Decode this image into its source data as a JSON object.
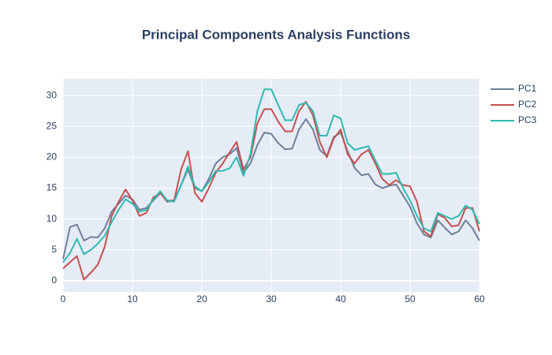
{
  "chart_data": {
    "type": "line",
    "title": "Principal Components Analysis Functions",
    "x": [
      0,
      1,
      2,
      3,
      4,
      5,
      6,
      7,
      8,
      9,
      10,
      11,
      12,
      13,
      14,
      15,
      16,
      17,
      18,
      19,
      20,
      21,
      22,
      23,
      24,
      25,
      26,
      27,
      28,
      29,
      30,
      31,
      32,
      33,
      34,
      35,
      36,
      37,
      38,
      39,
      40,
      41,
      42,
      43,
      44,
      45,
      46,
      47,
      48,
      49,
      50,
      51,
      52,
      53,
      54,
      55,
      56,
      57,
      58,
      59,
      60
    ],
    "series": [
      {
        "name": "PC1",
        "color": "#6f7f98",
        "values": [
          3.5,
          8.7,
          9.1,
          6.5,
          7.1,
          7.0,
          8.5,
          11.2,
          12.5,
          13.8,
          13.2,
          11.5,
          11.8,
          13.0,
          14.2,
          13.0,
          13.0,
          15.5,
          18.0,
          15.0,
          14.5,
          16.5,
          19.0,
          20.0,
          20.5,
          21.5,
          17.5,
          19.0,
          22.0,
          24.0,
          23.8,
          22.3,
          21.3,
          21.4,
          24.5,
          26.2,
          24.5,
          21.2,
          20.2,
          23.3,
          24.0,
          21.0,
          18.3,
          17.1,
          17.3,
          15.6,
          15.0,
          15.4,
          15.6,
          13.8,
          12.0,
          9.3,
          7.5,
          7.0,
          9.8,
          8.6,
          7.5,
          8.0,
          9.8,
          8.5,
          6.5
        ]
      },
      {
        "name": "PC2",
        "color": "#c4504e",
        "values": [
          2.0,
          3.0,
          4.0,
          0.2,
          1.3,
          2.6,
          5.5,
          10.5,
          12.8,
          14.8,
          13.0,
          10.5,
          11.0,
          13.5,
          14.2,
          12.8,
          13.0,
          18.0,
          21.0,
          14.2,
          12.8,
          15.0,
          17.5,
          19.0,
          20.8,
          22.5,
          18.0,
          20.0,
          25.5,
          27.8,
          27.8,
          25.8,
          24.2,
          24.2,
          27.5,
          29.0,
          26.8,
          22.5,
          20.0,
          23.0,
          24.5,
          20.5,
          19.0,
          20.5,
          21.2,
          19.0,
          16.5,
          15.5,
          16.3,
          15.5,
          15.3,
          12.8,
          8.0,
          7.2,
          10.8,
          10.2,
          8.8,
          9.0,
          11.8,
          11.8,
          8.0
        ]
      },
      {
        "name": "PC3",
        "color": "#2fbab0",
        "values": [
          3.0,
          4.5,
          6.8,
          4.3,
          5.0,
          6.0,
          7.3,
          9.5,
          11.5,
          13.2,
          12.5,
          11.2,
          11.5,
          13.2,
          14.5,
          13.0,
          12.8,
          15.5,
          18.5,
          15.3,
          14.5,
          16.0,
          17.8,
          17.8,
          18.2,
          20.0,
          17.0,
          20.5,
          27.5,
          31.0,
          31.0,
          28.5,
          26.0,
          26.0,
          28.5,
          28.8,
          27.5,
          23.5,
          23.5,
          26.8,
          26.3,
          22.3,
          21.2,
          21.5,
          21.8,
          19.5,
          17.3,
          17.3,
          17.5,
          15.0,
          13.0,
          10.5,
          8.5,
          8.0,
          11.0,
          10.5,
          10.0,
          10.5,
          12.2,
          11.5,
          9.2
        ]
      }
    ],
    "xlim": [
      0,
      60
    ],
    "xticks": [
      0,
      10,
      20,
      30,
      40,
      50,
      60
    ],
    "ylim": [
      -1.8,
      32.7
    ],
    "yticks": [
      0,
      5,
      10,
      15,
      20,
      25,
      30
    ],
    "grid": true,
    "legend": "top-right"
  }
}
